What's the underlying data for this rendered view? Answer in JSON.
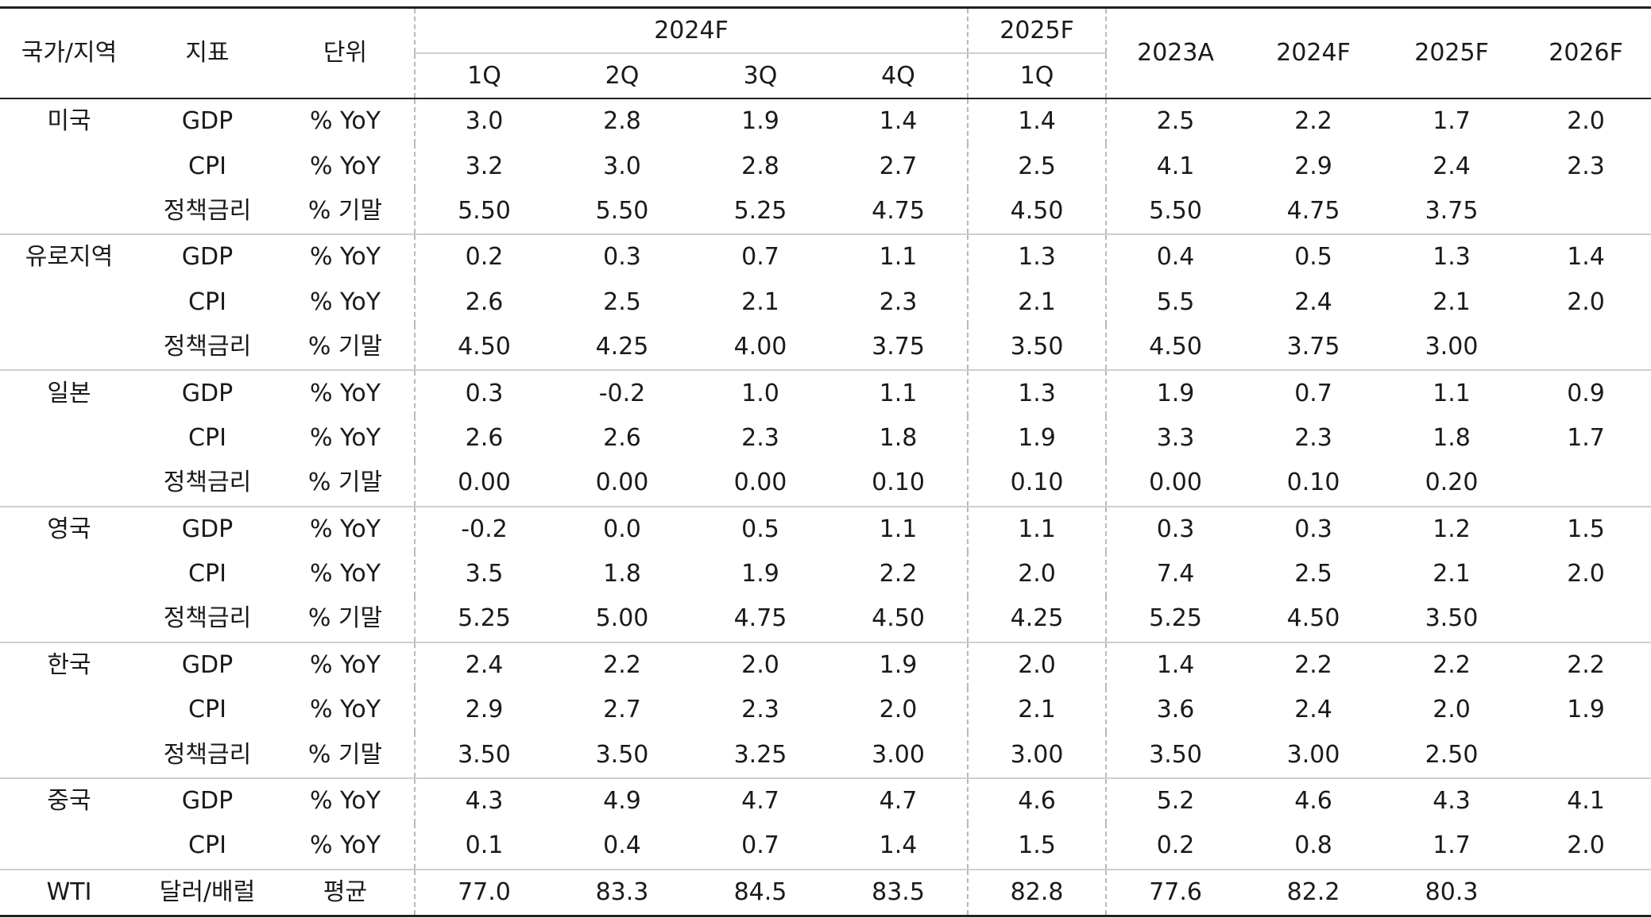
{
  "header": {
    "country_label": "국가/지역",
    "indicator_label": "지표",
    "unit_label": "단위",
    "group_2024F": "2024F",
    "group_2025F": "2025F",
    "quarters": [
      "1Q",
      "2Q",
      "3Q",
      "4Q",
      "1Q"
    ],
    "years": [
      "2023A",
      "2024F",
      "2025F",
      "2026F"
    ]
  },
  "rows": [
    {
      "country": "미국",
      "indicator": "GDP",
      "unit": "% YoY",
      "values": [
        "3.0",
        "2.8",
        "1.9",
        "1.4",
        "1.4",
        "2.5",
        "2.2",
        "1.7",
        "2.0"
      ]
    },
    {
      "country": "",
      "indicator": "CPI",
      "unit": "% YoY",
      "values": [
        "3.2",
        "3.0",
        "2.8",
        "2.7",
        "2.5",
        "4.1",
        "2.9",
        "2.4",
        "2.3"
      ]
    },
    {
      "country": "",
      "indicator": "정책금리",
      "unit": "% 기말",
      "values": [
        "5.50",
        "5.50",
        "5.25",
        "4.75",
        "4.50",
        "5.50",
        "4.75",
        "3.75",
        ""
      ]
    },
    {
      "country": "유로지역",
      "indicator": "GDP",
      "unit": "% YoY",
      "values": [
        "0.2",
        "0.3",
        "0.7",
        "1.1",
        "1.3",
        "0.4",
        "0.5",
        "1.3",
        "1.4"
      ]
    },
    {
      "country": "",
      "indicator": "CPI",
      "unit": "% YoY",
      "values": [
        "2.6",
        "2.5",
        "2.1",
        "2.3",
        "2.1",
        "5.5",
        "2.4",
        "2.1",
        "2.0"
      ]
    },
    {
      "country": "",
      "indicator": "정책금리",
      "unit": "% 기말",
      "values": [
        "4.50",
        "4.25",
        "4.00",
        "3.75",
        "3.50",
        "4.50",
        "3.75",
        "3.00",
        ""
      ]
    },
    {
      "country": "일본",
      "indicator": "GDP",
      "unit": "% YoY",
      "values": [
        "0.3",
        "-0.2",
        "1.0",
        "1.1",
        "1.3",
        "1.9",
        "0.7",
        "1.1",
        "0.9"
      ]
    },
    {
      "country": "",
      "indicator": "CPI",
      "unit": "% YoY",
      "values": [
        "2.6",
        "2.6",
        "2.3",
        "1.8",
        "1.9",
        "3.3",
        "2.3",
        "1.8",
        "1.7"
      ]
    },
    {
      "country": "",
      "indicator": "정책금리",
      "unit": "% 기말",
      "values": [
        "0.00",
        "0.00",
        "0.00",
        "0.10",
        "0.10",
        "0.00",
        "0.10",
        "0.20",
        ""
      ]
    },
    {
      "country": "영국",
      "indicator": "GDP",
      "unit": "% YoY",
      "values": [
        "-0.2",
        "0.0",
        "0.5",
        "1.1",
        "1.1",
        "0.3",
        "0.3",
        "1.2",
        "1.5"
      ]
    },
    {
      "country": "",
      "indicator": "CPI",
      "unit": "% YoY",
      "values": [
        "3.5",
        "1.8",
        "1.9",
        "2.2",
        "2.0",
        "7.4",
        "2.5",
        "2.1",
        "2.0"
      ]
    },
    {
      "country": "",
      "indicator": "정책금리",
      "unit": "% 기말",
      "values": [
        "5.25",
        "5.00",
        "4.75",
        "4.50",
        "4.25",
        "5.25",
        "4.50",
        "3.50",
        ""
      ]
    },
    {
      "country": "한국",
      "indicator": "GDP",
      "unit": "% YoY",
      "values": [
        "2.4",
        "2.2",
        "2.0",
        "1.9",
        "2.0",
        "1.4",
        "2.2",
        "2.2",
        "2.2"
      ]
    },
    {
      "country": "",
      "indicator": "CPI",
      "unit": "% YoY",
      "values": [
        "2.9",
        "2.7",
        "2.3",
        "2.0",
        "2.1",
        "3.6",
        "2.4",
        "2.0",
        "1.9"
      ]
    },
    {
      "country": "",
      "indicator": "정책금리",
      "unit": "% 기말",
      "values": [
        "3.50",
        "3.50",
        "3.25",
        "3.00",
        "3.00",
        "3.50",
        "3.00",
        "2.50",
        ""
      ]
    },
    {
      "country": "중국",
      "indicator": "GDP",
      "unit": "% YoY",
      "values": [
        "4.3",
        "4.9",
        "4.7",
        "4.7",
        "4.6",
        "5.2",
        "4.6",
        "4.3",
        "4.1"
      ]
    },
    {
      "country": "",
      "indicator": "CPI",
      "unit": "% YoY",
      "values": [
        "0.1",
        "0.4",
        "0.7",
        "1.4",
        "1.5",
        "0.2",
        "0.8",
        "1.7",
        "2.0"
      ]
    },
    {
      "country": "WTI",
      "indicator": "달러/배럴",
      "unit": "평균",
      "values": [
        "77.0",
        "83.3",
        "84.5",
        "83.5",
        "82.8",
        "77.6",
        "82.2",
        "80.3",
        ""
      ]
    }
  ]
}
